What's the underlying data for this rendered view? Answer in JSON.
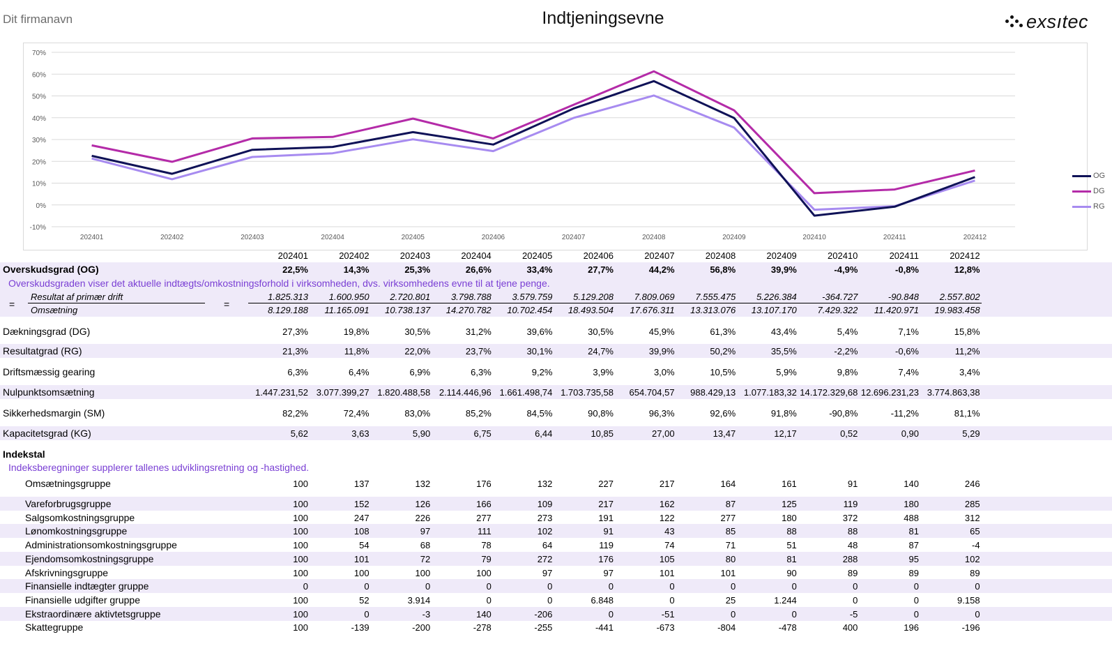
{
  "header": {
    "company": "Dit firmanavn",
    "title": "Indtjeningsevne",
    "logo_text": "exsıtec"
  },
  "chart_data": {
    "type": "line",
    "categories": [
      "202401",
      "202402",
      "202403",
      "202404",
      "202405",
      "202406",
      "202407",
      "202408",
      "202409",
      "202410",
      "202411",
      "202412"
    ],
    "ylim": [
      -10,
      70
    ],
    "yticks": [
      "-10%",
      "0%",
      "10%",
      "20%",
      "30%",
      "40%",
      "50%",
      "60%",
      "70%"
    ],
    "grid": true,
    "legend_position": "right",
    "series": [
      {
        "name": "OG",
        "color": "#0f1257",
        "values": [
          22.5,
          14.3,
          25.3,
          26.6,
          33.4,
          27.7,
          44.2,
          56.8,
          39.9,
          -4.9,
          -0.8,
          12.8
        ]
      },
      {
        "name": "DG",
        "color": "#b42ba8",
        "values": [
          27.3,
          19.8,
          30.5,
          31.2,
          39.6,
          30.5,
          45.9,
          61.3,
          43.4,
          5.4,
          7.1,
          15.8
        ]
      },
      {
        "name": "RG",
        "color": "#a78bf0",
        "values": [
          21.3,
          11.8,
          22.0,
          23.7,
          30.1,
          24.7,
          39.9,
          50.2,
          35.5,
          -2.2,
          -0.6,
          11.2
        ]
      }
    ]
  },
  "table": {
    "periods": [
      "202401",
      "202402",
      "202403",
      "202404",
      "202405",
      "202406",
      "202407",
      "202408",
      "202409",
      "202410",
      "202411",
      "202412"
    ],
    "og": {
      "label": "Overskudsgrad (OG)",
      "values": [
        "22,5%",
        "14,3%",
        "25,3%",
        "26,6%",
        "33,4%",
        "27,7%",
        "44,2%",
        "56,8%",
        "39,9%",
        "-4,9%",
        "-0,8%",
        "12,8%"
      ],
      "description": "Overskudsgraden viser det aktuelle indtægts/omkostningsforhold i virksomheden, dvs. virksomhedens evne til at tjene penge.",
      "eq": "=",
      "numerator_label": "Resultat af primær drift",
      "denominator_label": "Omsætning",
      "numerator": [
        "1.825.313",
        "1.600.950",
        "2.720.801",
        "3.798.788",
        "3.579.759",
        "5.129.208",
        "7.809.069",
        "7.555.475",
        "5.226.384",
        "-364.727",
        "-90.848",
        "2.557.802"
      ],
      "denominator": [
        "8.129.188",
        "11.165.091",
        "10.738.137",
        "14.270.782",
        "10.702.454",
        "18.493.504",
        "17.676.311",
        "13.313.076",
        "13.107.170",
        "7.429.322",
        "11.420.971",
        "19.983.458"
      ]
    },
    "metrics": [
      {
        "label": "Dækningsgrad (DG)",
        "values": [
          "27,3%",
          "19,8%",
          "30,5%",
          "31,2%",
          "39,6%",
          "30,5%",
          "45,9%",
          "61,3%",
          "43,4%",
          "5,4%",
          "7,1%",
          "15,8%"
        ]
      },
      {
        "label": "Resultatgrad (RG)",
        "values": [
          "21,3%",
          "11,8%",
          "22,0%",
          "23,7%",
          "30,1%",
          "24,7%",
          "39,9%",
          "50,2%",
          "35,5%",
          "-2,2%",
          "-0,6%",
          "11,2%"
        ]
      },
      {
        "label": "Driftsmæssig gearing",
        "values": [
          "6,3%",
          "6,4%",
          "6,9%",
          "6,3%",
          "9,2%",
          "3,9%",
          "3,0%",
          "10,5%",
          "5,9%",
          "9,8%",
          "7,4%",
          "3,4%"
        ]
      },
      {
        "label": "Nulpunktsomsætning",
        "values": [
          "1.447.231,52",
          "3.077.399,27",
          "1.820.488,58",
          "2.114.446,96",
          "1.661.498,74",
          "1.703.735,58",
          "654.704,57",
          "988.429,13",
          "1.077.183,32",
          "14.172.329,68",
          "12.696.231,23",
          "3.774.863,38"
        ]
      },
      {
        "label": "Sikkerhedsmargin (SM)",
        "values": [
          "82,2%",
          "72,4%",
          "83,0%",
          "85,2%",
          "84,5%",
          "90,8%",
          "96,3%",
          "92,6%",
          "91,8%",
          "-90,8%",
          "-11,2%",
          "81,1%"
        ]
      },
      {
        "label": "Kapacitetsgrad (KG)",
        "values": [
          "5,62",
          "3,63",
          "5,90",
          "6,75",
          "6,44",
          "10,85",
          "27,00",
          "13,47",
          "12,17",
          "0,52",
          "0,90",
          "5,29"
        ]
      }
    ],
    "index": {
      "title": "Indekstal",
      "description": "Indeksberegninger supplerer tallenes udviklingsretning og -hastighed.",
      "rows": [
        {
          "label": "Omsætningsgruppe",
          "values": [
            "100",
            "137",
            "132",
            "176",
            "132",
            "227",
            "217",
            "164",
            "161",
            "91",
            "140",
            "246"
          ]
        },
        {
          "label": "Vareforbrugsgruppe",
          "values": [
            "100",
            "152",
            "126",
            "166",
            "109",
            "217",
            "162",
            "87",
            "125",
            "119",
            "180",
            "285"
          ]
        },
        {
          "label": "Salgsomkostningsgruppe",
          "values": [
            "100",
            "247",
            "226",
            "277",
            "273",
            "191",
            "122",
            "277",
            "180",
            "372",
            "488",
            "312"
          ]
        },
        {
          "label": "Lønomkostningsgruppe",
          "values": [
            "100",
            "108",
            "97",
            "111",
            "102",
            "91",
            "43",
            "85",
            "88",
            "88",
            "81",
            "65"
          ]
        },
        {
          "label": "Administrationsomkostningsgruppe",
          "values": [
            "100",
            "54",
            "68",
            "78",
            "64",
            "119",
            "74",
            "71",
            "51",
            "48",
            "87",
            "-4"
          ]
        },
        {
          "label": "Ejendomsomkostningsgruppe",
          "values": [
            "100",
            "101",
            "72",
            "79",
            "272",
            "176",
            "105",
            "80",
            "81",
            "288",
            "95",
            "102"
          ]
        },
        {
          "label": "Afskrivningsgruppe",
          "values": [
            "100",
            "100",
            "100",
            "100",
            "97",
            "97",
            "101",
            "101",
            "90",
            "89",
            "89",
            "89"
          ]
        },
        {
          "label": "Finansielle indtægter gruppe",
          "values": [
            "0",
            "0",
            "0",
            "0",
            "0",
            "0",
            "0",
            "0",
            "0",
            "0",
            "0",
            "0"
          ]
        },
        {
          "label": "Finansielle udgifter gruppe",
          "values": [
            "100",
            "52",
            "3.914",
            "0",
            "0",
            "6.848",
            "0",
            "25",
            "1.244",
            "0",
            "0",
            "9.158"
          ]
        },
        {
          "label": "Ekstraordinære aktivtetsgruppe",
          "values": [
            "100",
            "0",
            "-3",
            "140",
            "-206",
            "0",
            "-51",
            "0",
            "0",
            "-5",
            "0",
            "0"
          ]
        },
        {
          "label": "Skattegruppe",
          "values": [
            "100",
            "-139",
            "-200",
            "-278",
            "-255",
            "-441",
            "-673",
            "-804",
            "-478",
            "400",
            "196",
            "-196"
          ]
        }
      ]
    }
  }
}
